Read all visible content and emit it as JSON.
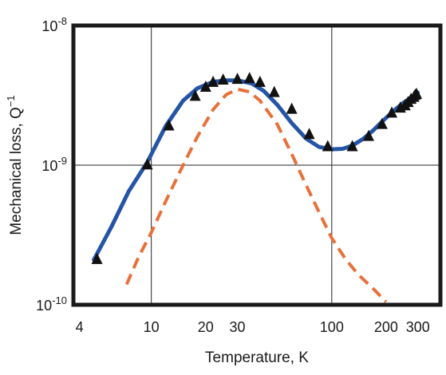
{
  "chart_data": {
    "type": "line",
    "title": "",
    "xlabel": "Temperature, K",
    "ylabel": "Mechanical loss, Q",
    "ylabel_superscript": "−1",
    "xscale": "log",
    "yscale": "log",
    "xlim": [
      3.7,
      400
    ],
    "ylim": [
      1e-10,
      1e-08
    ],
    "grid": "major",
    "x_ticks": [
      4,
      10,
      20,
      30,
      100,
      200,
      300
    ],
    "x_tick_labels": [
      "4",
      "10",
      "20",
      "30",
      "100",
      "200",
      "300"
    ],
    "y_ticks": [
      1e-10,
      1e-09,
      1e-08
    ],
    "y_tick_labels": [
      {
        "base": "10",
        "exp": "-10"
      },
      {
        "base": "10",
        "exp": "-9"
      },
      {
        "base": "10",
        "exp": "-8"
      }
    ],
    "series": [
      {
        "style": "solid-line",
        "color": "#2454a6",
        "x": [
          4.8,
          6,
          7.5,
          9.5,
          12,
          15,
          18,
          22,
          26,
          30,
          36,
          42,
          50,
          60,
          72,
          85,
          100,
          115,
          130,
          150,
          170,
          190,
          220,
          250,
          280,
          300
        ],
        "y": [
          2.1e-10,
          3.6e-10,
          6.5e-10,
          1.05e-09,
          1.9e-09,
          2.9e-09,
          3.55e-09,
          3.95e-09,
          4.05e-09,
          4.05e-09,
          3.85e-09,
          3.4e-09,
          2.7e-09,
          2e-09,
          1.55e-09,
          1.35e-09,
          1.3e-09,
          1.31e-09,
          1.38e-09,
          1.55e-09,
          1.78e-09,
          2.05e-09,
          2.45e-09,
          2.8e-09,
          3.1e-09,
          3.3e-09
        ]
      },
      {
        "style": "dashed-line",
        "color": "#e8703a",
        "x": [
          7.3,
          8.5,
          10,
          12,
          15,
          18,
          22,
          26,
          30,
          35,
          40,
          50,
          60,
          70,
          85,
          100,
          120,
          140,
          170,
          200
        ],
        "y": [
          1.4e-10,
          2.2e-10,
          3.3e-10,
          5.5e-10,
          1e-09,
          1.6e-09,
          2.5e-09,
          3.2e-09,
          3.5e-09,
          3.35e-09,
          2.9e-09,
          1.95e-09,
          1.2e-09,
          7.8e-10,
          4.6e-10,
          3e-10,
          2.1e-10,
          1.65e-10,
          1.3e-10,
          1.05e-10
        ]
      },
      {
        "style": "triangle-markers",
        "color": "#111111",
        "x": [
          5,
          9.5,
          12.5,
          17.5,
          20,
          22,
          25,
          30,
          35,
          40,
          48,
          60,
          75,
          95,
          130,
          160,
          190,
          215,
          240,
          255,
          265,
          275,
          285,
          290,
          295
        ],
        "y": [
          2.1e-10,
          1e-09,
          1.9e-09,
          3.1e-09,
          3.6e-09,
          3.9e-09,
          4.05e-09,
          4.1e-09,
          4.15e-09,
          3.9e-09,
          3.3e-09,
          2.5e-09,
          1.65e-09,
          1.35e-09,
          1.35e-09,
          1.6e-09,
          1.95e-09,
          2.35e-09,
          2.55e-09,
          2.65e-09,
          2.8e-09,
          2.95e-09,
          3.05e-09,
          3.15e-09,
          3.2e-09
        ]
      }
    ]
  }
}
